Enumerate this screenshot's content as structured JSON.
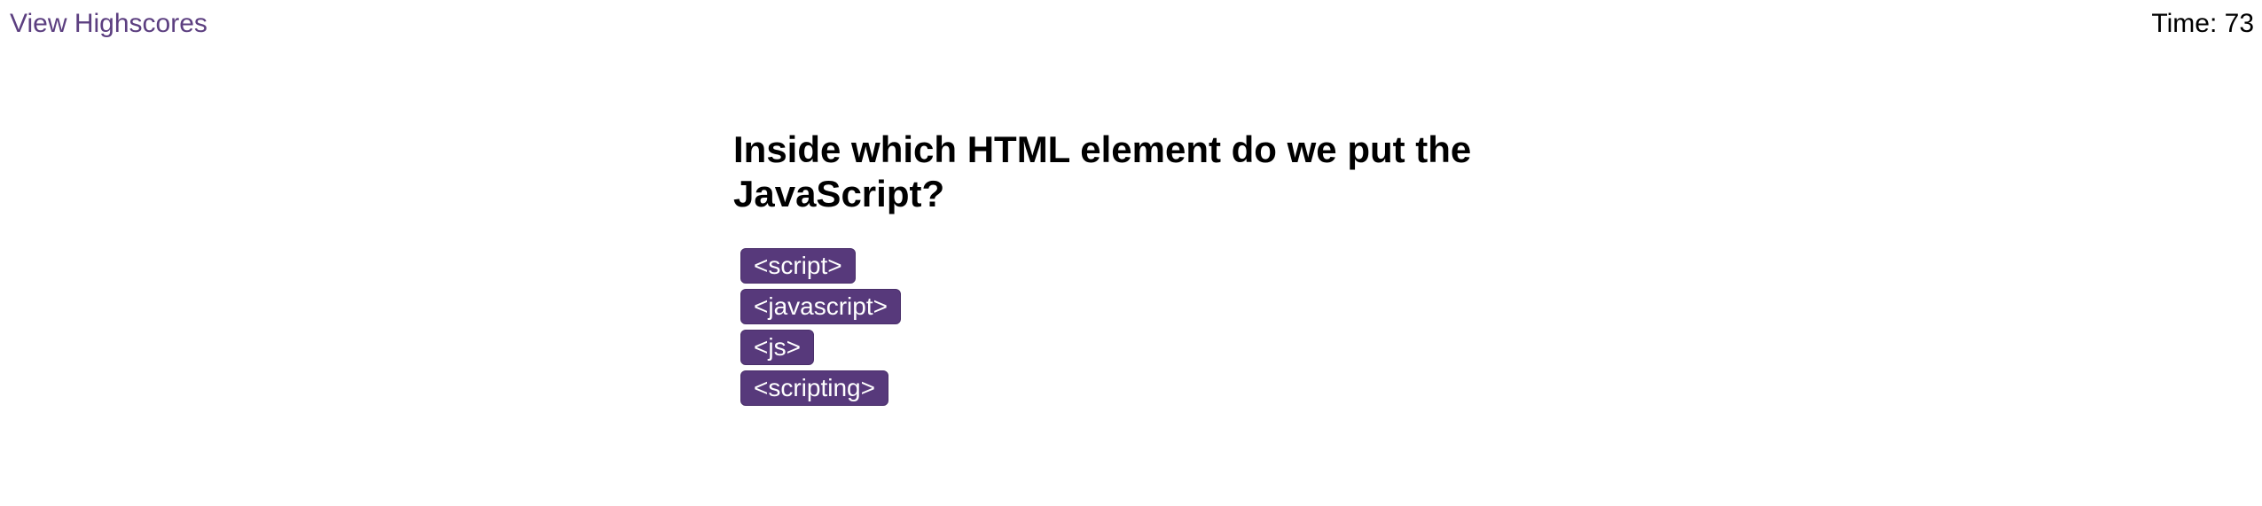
{
  "header": {
    "highscores_link": "View Highscores",
    "timer_label": "Time: 73"
  },
  "quiz": {
    "question": "Inside which HTML element do we put the JavaScript?",
    "choices": [
      "<script>",
      "<javascript>",
      "<js>",
      "<scripting>"
    ]
  },
  "colors": {
    "accent": "#57397b",
    "link": "#5c3f80",
    "button_text": "#ffffff"
  }
}
